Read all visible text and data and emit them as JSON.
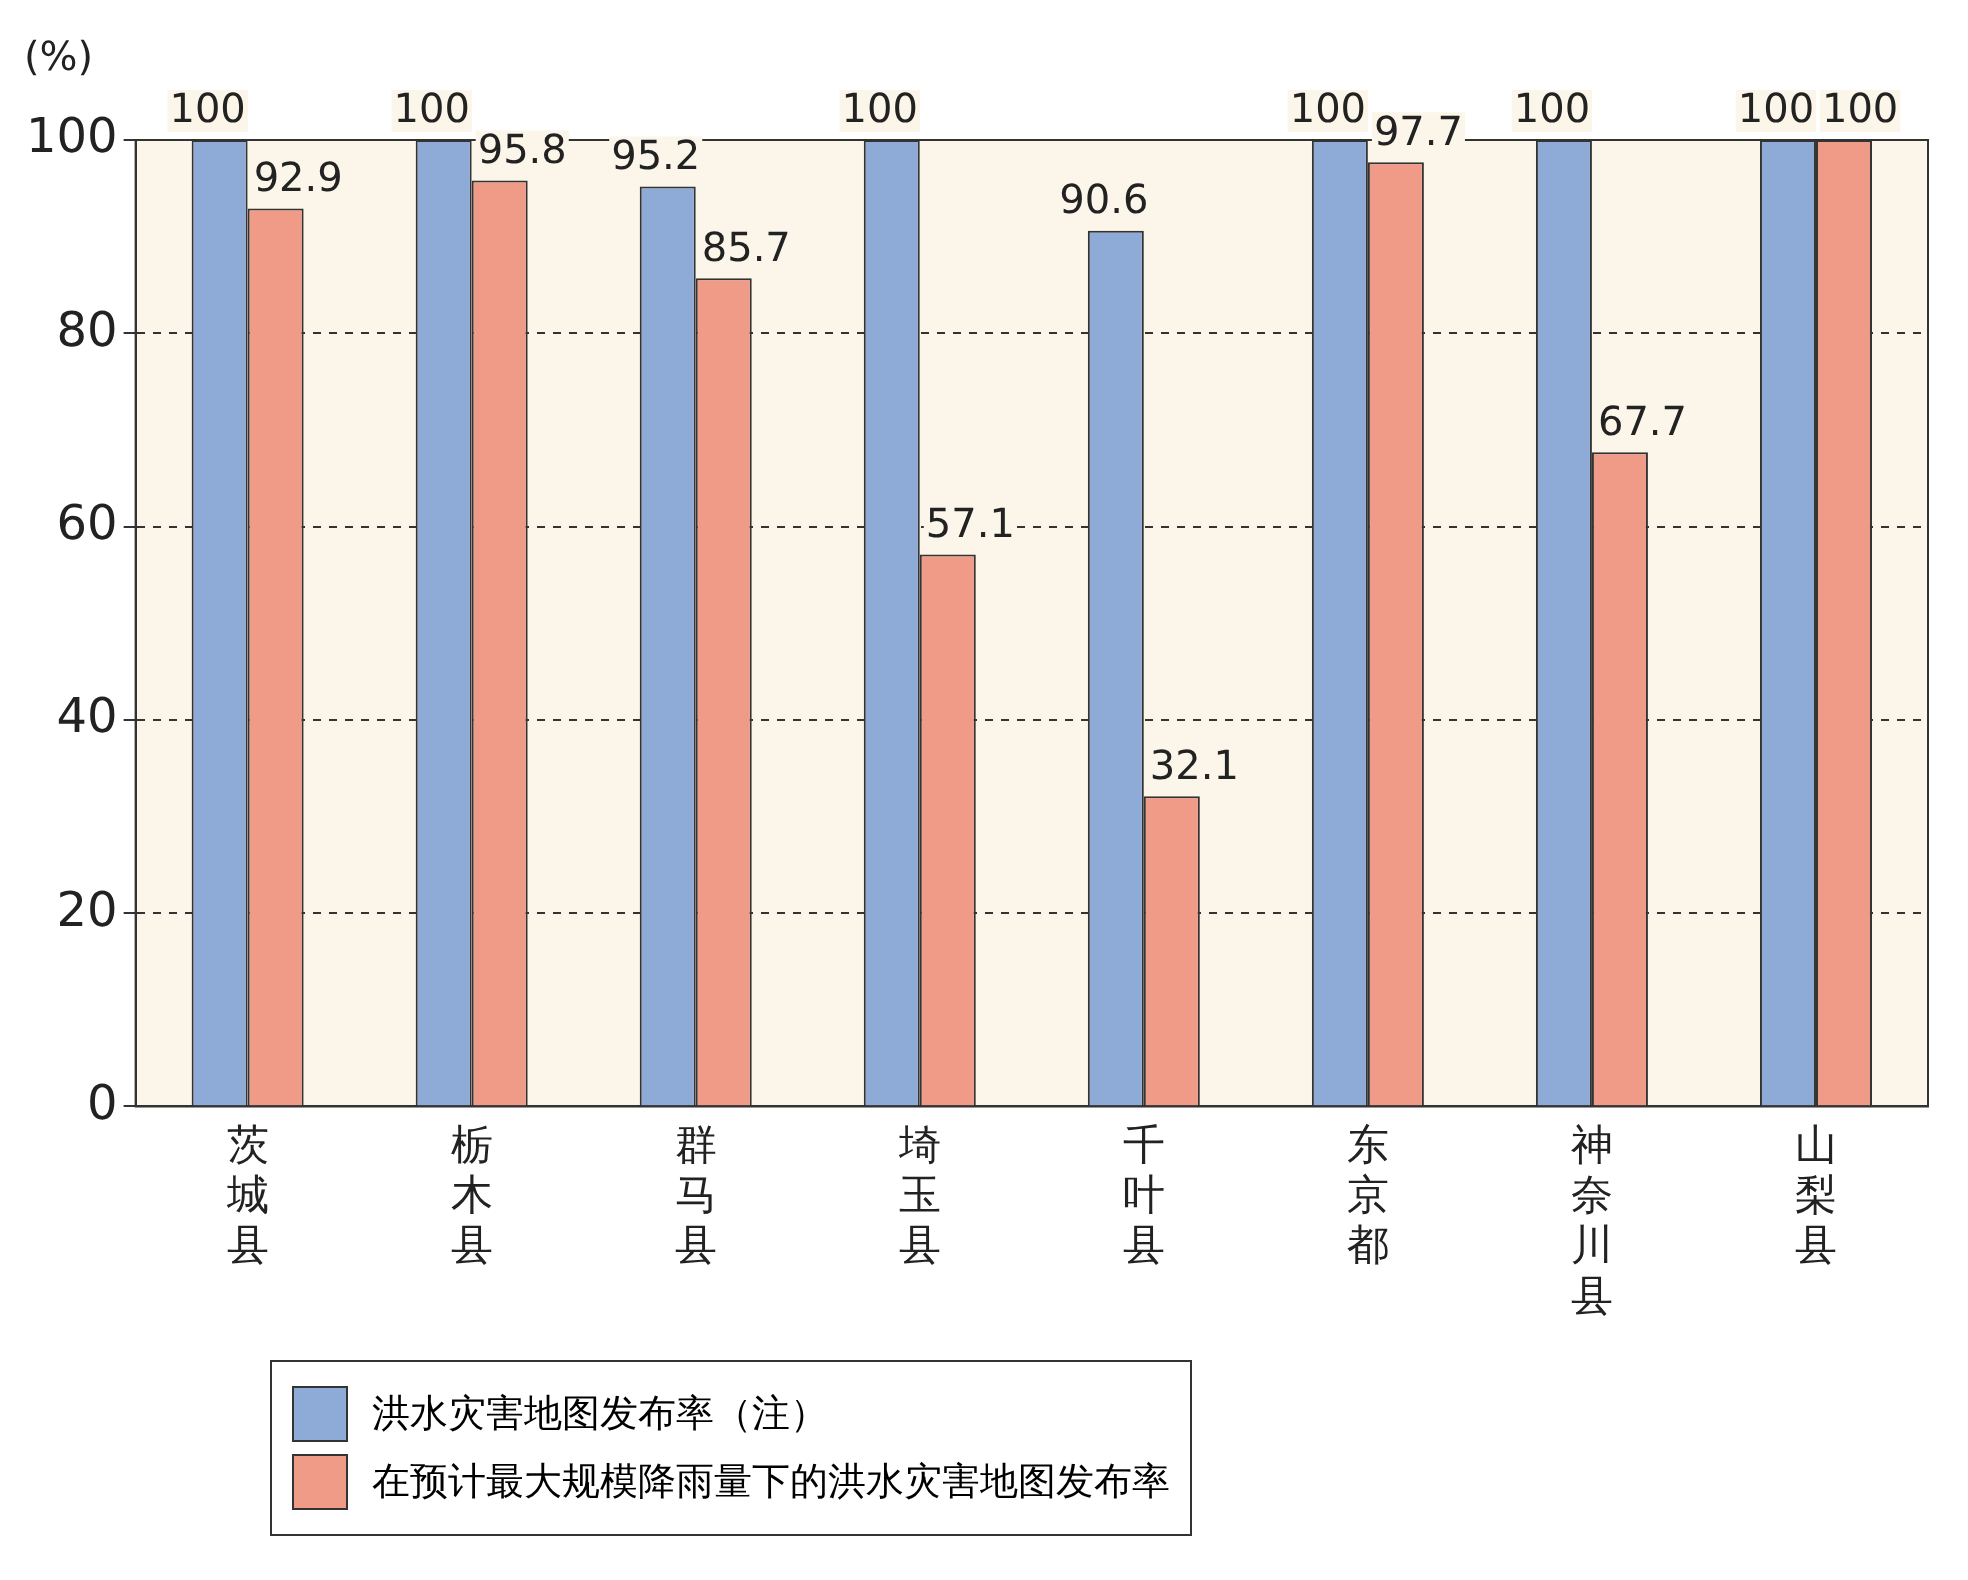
{
  "chart_data": {
    "type": "bar",
    "ylabel": "(%)",
    "categories": [
      "茨城县",
      "栃木县",
      "群马县",
      "埼玉县",
      "千叶县",
      "东京都",
      "神奈川县",
      "山梨县"
    ],
    "series": [
      {
        "name": "洪水灾害地图发布率（注）",
        "color": "#8eaad6",
        "values": [
          100,
          100,
          95.2,
          100,
          90.6,
          100,
          100,
          100
        ]
      },
      {
        "name": "在预计最大规模降雨量下的洪水灾害地图发布率",
        "color": "#f09a88",
        "values": [
          92.9,
          95.8,
          85.7,
          57.1,
          32.1,
          97.7,
          67.7,
          100
        ]
      }
    ],
    "ylim": [
      0,
      100
    ],
    "yticks": [
      0,
      20,
      40,
      60,
      80,
      100
    ],
    "grid": "y",
    "legend": "bottom",
    "data_labels": true
  }
}
